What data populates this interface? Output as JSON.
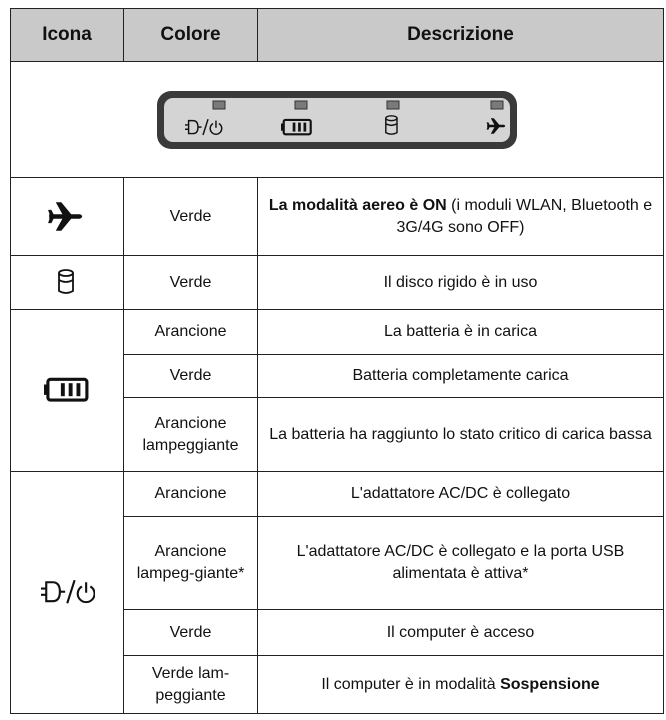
{
  "header": {
    "columns": [
      "Icona",
      "Colore",
      "Descrizione"
    ]
  },
  "groups": [
    {
      "icon": "airplane",
      "rows": [
        {
          "color": "Verde",
          "description": [
            {
              "text": "La modalità aereo è ON",
              "bold": true
            },
            {
              "text": " (i moduli WLAN, Bluetooth e 3G/4G sono OFF)",
              "bold": false
            }
          ]
        }
      ]
    },
    {
      "icon": "disk",
      "rows": [
        {
          "color": "Verde",
          "description": [
            {
              "text": "Il disco rigido è in uso",
              "bold": false
            }
          ]
        }
      ]
    },
    {
      "icon": "battery",
      "rows": [
        {
          "color": "Arancione",
          "description": [
            {
              "text": "La batteria è in carica",
              "bold": false
            }
          ]
        },
        {
          "color": "Verde",
          "description": [
            {
              "text": "Batteria completamente carica",
              "bold": false
            }
          ]
        },
        {
          "color": "Arancione lampeggiante",
          "description": [
            {
              "text": "La batteria ha raggiunto lo stato critico di carica bassa",
              "bold": false
            }
          ]
        }
      ]
    },
    {
      "icon": "power",
      "rows": [
        {
          "color": "Arancione",
          "description": [
            {
              "text": "L'adattatore AC/DC è collegato",
              "bold": false
            }
          ]
        },
        {
          "color": "Arancione lampeg-giante*",
          "description": [
            {
              "text": "L'adattatore AC/DC è collegato e la porta USB alimentata è attiva*",
              "bold": false
            }
          ]
        },
        {
          "color": "Verde",
          "description": [
            {
              "text": "Il computer è acceso",
              "bold": false
            }
          ]
        },
        {
          "color": "Verde lam-peggiante",
          "description": [
            {
              "text": "Il computer è in modalità ",
              "bold": false
            },
            {
              "text": "Sospensione",
              "bold": true
            }
          ]
        }
      ]
    }
  ]
}
